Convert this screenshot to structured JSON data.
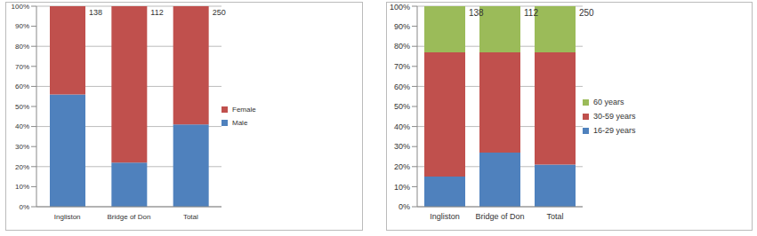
{
  "chart_data": [
    {
      "type": "bar",
      "stacked": true,
      "categories": [
        "Ingliston",
        "Bridge of Don",
        "Total"
      ],
      "series": [
        {
          "name": "Male",
          "color": "#4f81bd",
          "values": [
            56,
            22,
            41
          ]
        },
        {
          "name": "Female",
          "color": "#c0504d",
          "values": [
            44,
            78,
            59
          ]
        }
      ],
      "n": [
        138,
        112,
        250
      ],
      "ylim": [
        0,
        100
      ],
      "yticks": [
        {
          "value": 0,
          "label": "0%"
        },
        {
          "value": 10,
          "label": "10%"
        },
        {
          "value": 20,
          "label": "20%"
        },
        {
          "value": 30,
          "label": "30%"
        },
        {
          "value": 40,
          "label": "40%"
        },
        {
          "value": 50,
          "label": "50%"
        },
        {
          "value": 60,
          "label": "60%"
        },
        {
          "value": 70,
          "label": "70%"
        },
        {
          "value": 80,
          "label": "80%"
        },
        {
          "value": 90,
          "label": "90%"
        },
        {
          "value": 100,
          "label": "100%"
        }
      ],
      "grid": true,
      "legend": "right"
    },
    {
      "type": "bar",
      "stacked": true,
      "categories": [
        "Ingliston",
        "Bridge of Don",
        "Total"
      ],
      "series": [
        {
          "name": "16-29 years",
          "color": "#4f81bd",
          "values": [
            15,
            27,
            21
          ]
        },
        {
          "name": "30-59 years",
          "color": "#c0504d",
          "values": [
            62,
            50,
            56
          ]
        },
        {
          "name": "60 years",
          "color": "#9bbb59",
          "values": [
            23,
            23,
            23
          ]
        }
      ],
      "n": [
        138,
        112,
        250
      ],
      "ylim": [
        0,
        100
      ],
      "yticks": [
        {
          "value": 0,
          "label": "0%"
        },
        {
          "value": 10,
          "label": "10%"
        },
        {
          "value": 20,
          "label": "20%"
        },
        {
          "value": 30,
          "label": "30%"
        },
        {
          "value": 40,
          "label": "40%"
        },
        {
          "value": 50,
          "label": "50%"
        },
        {
          "value": 60,
          "label": "60%"
        },
        {
          "value": 70,
          "label": "70%"
        },
        {
          "value": 80,
          "label": "80%"
        },
        {
          "value": 90,
          "label": "90%"
        },
        {
          "value": 100,
          "label": "100%"
        }
      ],
      "grid": true,
      "legend": "right"
    }
  ]
}
